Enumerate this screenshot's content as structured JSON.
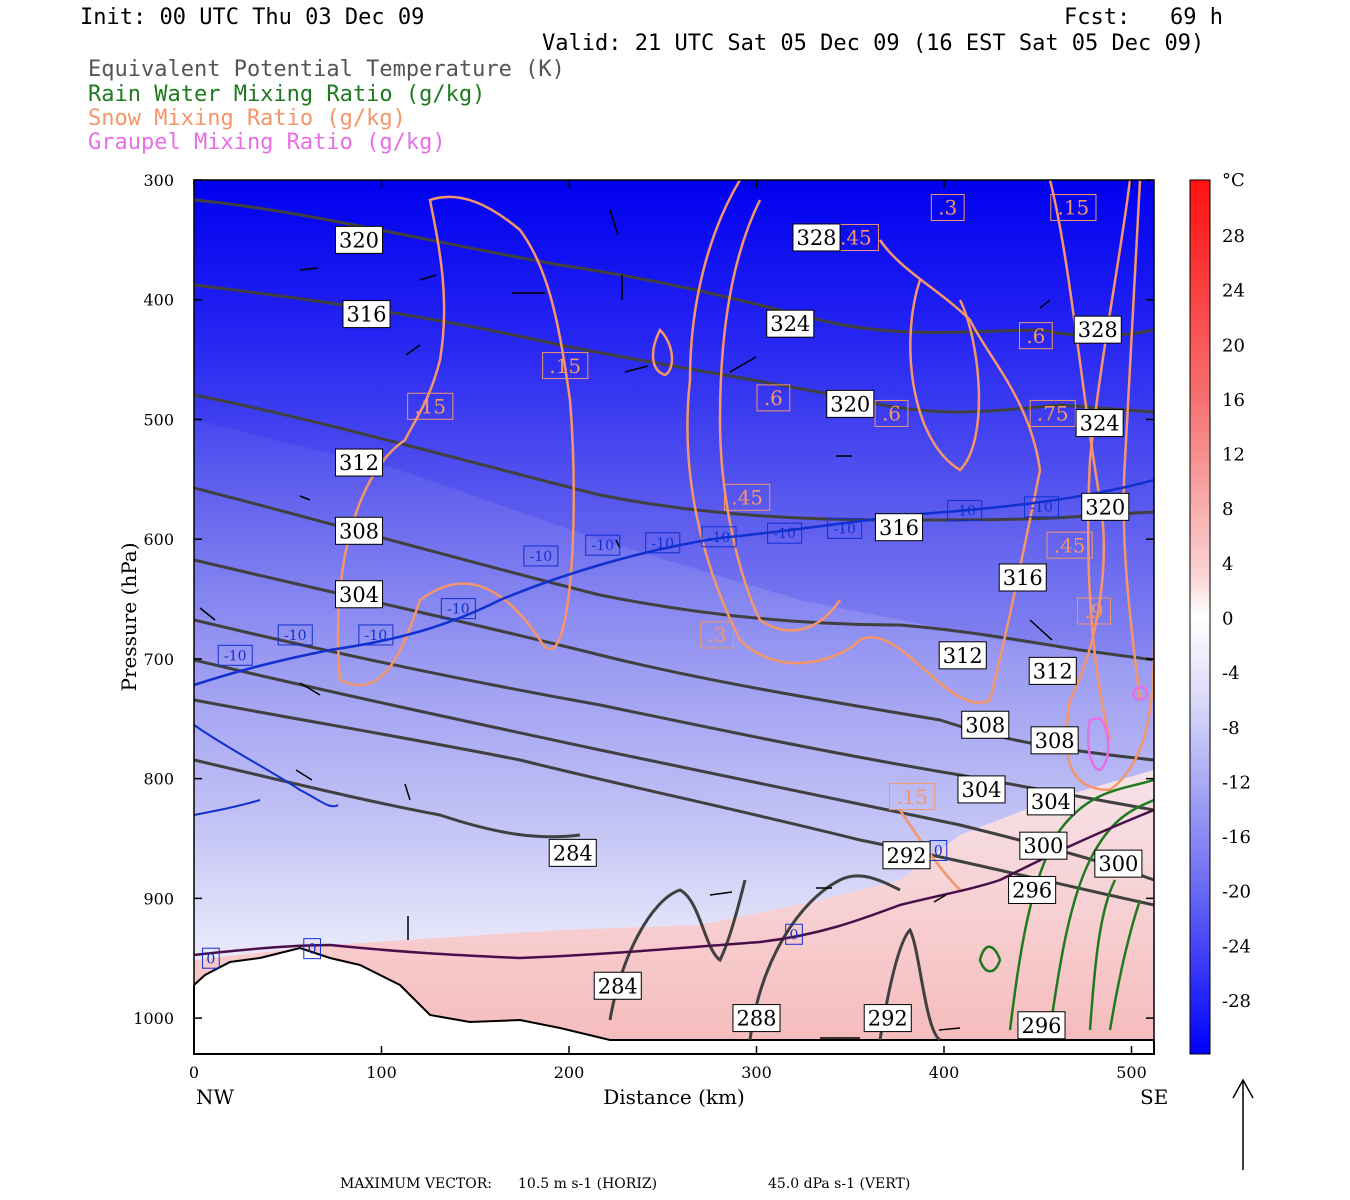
{
  "header": {
    "init": "Init: 00 UTC Thu 03 Dec 09",
    "fcst": "Fcst:   69 h",
    "valid": "Valid: 21 UTC Sat 05 Dec 09 (16 EST Sat 05 Dec 09)"
  },
  "legend": [
    {
      "text": "Equivalent Potential Temperature (K)",
      "color": "#555555"
    },
    {
      "text": "Rain Water Mixing Ratio (g/kg)",
      "color": "#1f7a1f"
    },
    {
      "text": "Snow Mixing Ratio (g/kg)",
      "color": "#f4956a"
    },
    {
      "text": "Graupel Mixing Ratio (g/kg)",
      "color": "#e86ee8"
    }
  ],
  "colors": {
    "theta_e": "#404040",
    "rain": "#1f7a1f",
    "snow": "#f4956a",
    "graupel": "#e86ee8",
    "isotherm_minus10": "#1030d0",
    "isotherm_0": "#4a0f4a"
  },
  "chart_data": {
    "type": "cross-section",
    "xlabel": "Distance (km)",
    "ylabel": "Pressure (hPa)",
    "xlim": [
      0,
      512
    ],
    "ylim": [
      1030,
      300
    ],
    "x_ticks": [
      "0",
      "100",
      "200",
      "300",
      "400",
      "500"
    ],
    "y_ticks": [
      "300",
      "400",
      "500",
      "600",
      "700",
      "800",
      "900",
      "1000"
    ],
    "x_start_label": "NW",
    "x_end_label": "SE",
    "colorbar": {
      "unit": "°C",
      "labels": [
        "28",
        "24",
        "20",
        "16",
        "12",
        "8",
        "4",
        "0",
        "-4",
        "-8",
        "-12",
        "-16",
        "-20",
        "-24",
        "-28"
      ],
      "top_color": "#ff1010",
      "bottom_color": "#0000ff"
    },
    "theta_e_labels": [
      {
        "text": "320",
        "x": 88,
        "p": 350
      },
      {
        "text": "316",
        "x": 92,
        "p": 412
      },
      {
        "text": "312",
        "x": 88,
        "p": 536
      },
      {
        "text": "308",
        "x": 88,
        "p": 593
      },
      {
        "text": "304",
        "x": 88,
        "p": 646
      },
      {
        "text": "328",
        "x": 332,
        "p": 348
      },
      {
        "text": "324",
        "x": 318,
        "p": 420
      },
      {
        "text": "320",
        "x": 350,
        "p": 487
      },
      {
        "text": "316",
        "x": 376,
        "p": 590
      },
      {
        "text": "316",
        "x": 442,
        "p": 632
      },
      {
        "text": "312",
        "x": 410,
        "p": 697
      },
      {
        "text": "312",
        "x": 458,
        "p": 710
      },
      {
        "text": "308",
        "x": 422,
        "p": 755
      },
      {
        "text": "308",
        "x": 459,
        "p": 768
      },
      {
        "text": "304",
        "x": 420,
        "p": 809
      },
      {
        "text": "304",
        "x": 457,
        "p": 819
      },
      {
        "text": "300",
        "x": 453,
        "p": 856
      },
      {
        "text": "300",
        "x": 493,
        "p": 871
      },
      {
        "text": "296",
        "x": 447,
        "p": 893
      },
      {
        "text": "292",
        "x": 380,
        "p": 864
      },
      {
        "text": "284",
        "x": 202,
        "p": 862
      },
      {
        "text": "284",
        "x": 226,
        "p": 973
      },
      {
        "text": "288",
        "x": 300,
        "p": 1000
      },
      {
        "text": "292",
        "x": 370,
        "p": 1000
      },
      {
        "text": "296",
        "x": 452,
        "p": 1006
      },
      {
        "text": "328",
        "x": 482,
        "p": 425
      },
      {
        "text": "324",
        "x": 483,
        "p": 503
      },
      {
        "text": "320",
        "x": 486,
        "p": 573
      }
    ],
    "isotherm_labels": [
      {
        "text": "-10",
        "x": 22,
        "p": 697
      },
      {
        "text": "-10",
        "x": 54,
        "p": 680
      },
      {
        "text": "-10",
        "x": 97,
        "p": 680
      },
      {
        "text": "-10",
        "x": 141,
        "p": 658
      },
      {
        "text": "-10",
        "x": 185,
        "p": 614
      },
      {
        "text": "-10",
        "x": 218,
        "p": 605
      },
      {
        "text": "-10",
        "x": 250,
        "p": 603
      },
      {
        "text": "-10",
        "x": 280,
        "p": 598
      },
      {
        "text": "-10",
        "x": 315,
        "p": 595
      },
      {
        "text": "-10",
        "x": 347,
        "p": 591
      },
      {
        "text": "-10",
        "x": 411,
        "p": 576
      },
      {
        "text": "-10",
        "x": 452,
        "p": 573
      },
      {
        "text": "0",
        "x": 9,
        "p": 950
      },
      {
        "text": "0",
        "x": 63,
        "p": 942
      },
      {
        "text": "0",
        "x": 320,
        "p": 930
      },
      {
        "text": "0",
        "x": 397,
        "p": 860
      }
    ],
    "snow_labels": [
      {
        "text": ".15",
        "x": 126,
        "p": 489
      },
      {
        "text": ".15",
        "x": 198,
        "p": 455
      },
      {
        "text": ".15",
        "x": 383,
        "p": 815
      },
      {
        "text": ".3",
        "x": 279,
        "p": 680
      },
      {
        "text": ".3",
        "x": 402,
        "p": 323
      },
      {
        "text": ".15",
        "x": 469,
        "p": 323
      },
      {
        "text": ".45",
        "x": 353,
        "p": 348
      },
      {
        "text": ".45",
        "x": 295,
        "p": 565
      },
      {
        "text": ".6",
        "x": 309,
        "p": 482
      },
      {
        "text": ".6",
        "x": 372,
        "p": 495
      },
      {
        "text": ".9",
        "x": 480,
        "p": 660
      },
      {
        "text": ".45",
        "x": 467,
        "p": 605
      },
      {
        "text": ".6",
        "x": 449,
        "p": 430
      },
      {
        "text": ".75",
        "x": 458,
        "p": 495
      }
    ]
  },
  "footer": {
    "max_vector_label": "MAXIMUM VECTOR:",
    "horiz_value": "10.5",
    "horiz_unit": "m s-1 (HORIZ)",
    "vert_value": "45.0",
    "vert_unit": "dPa s-1 (VERT)"
  }
}
